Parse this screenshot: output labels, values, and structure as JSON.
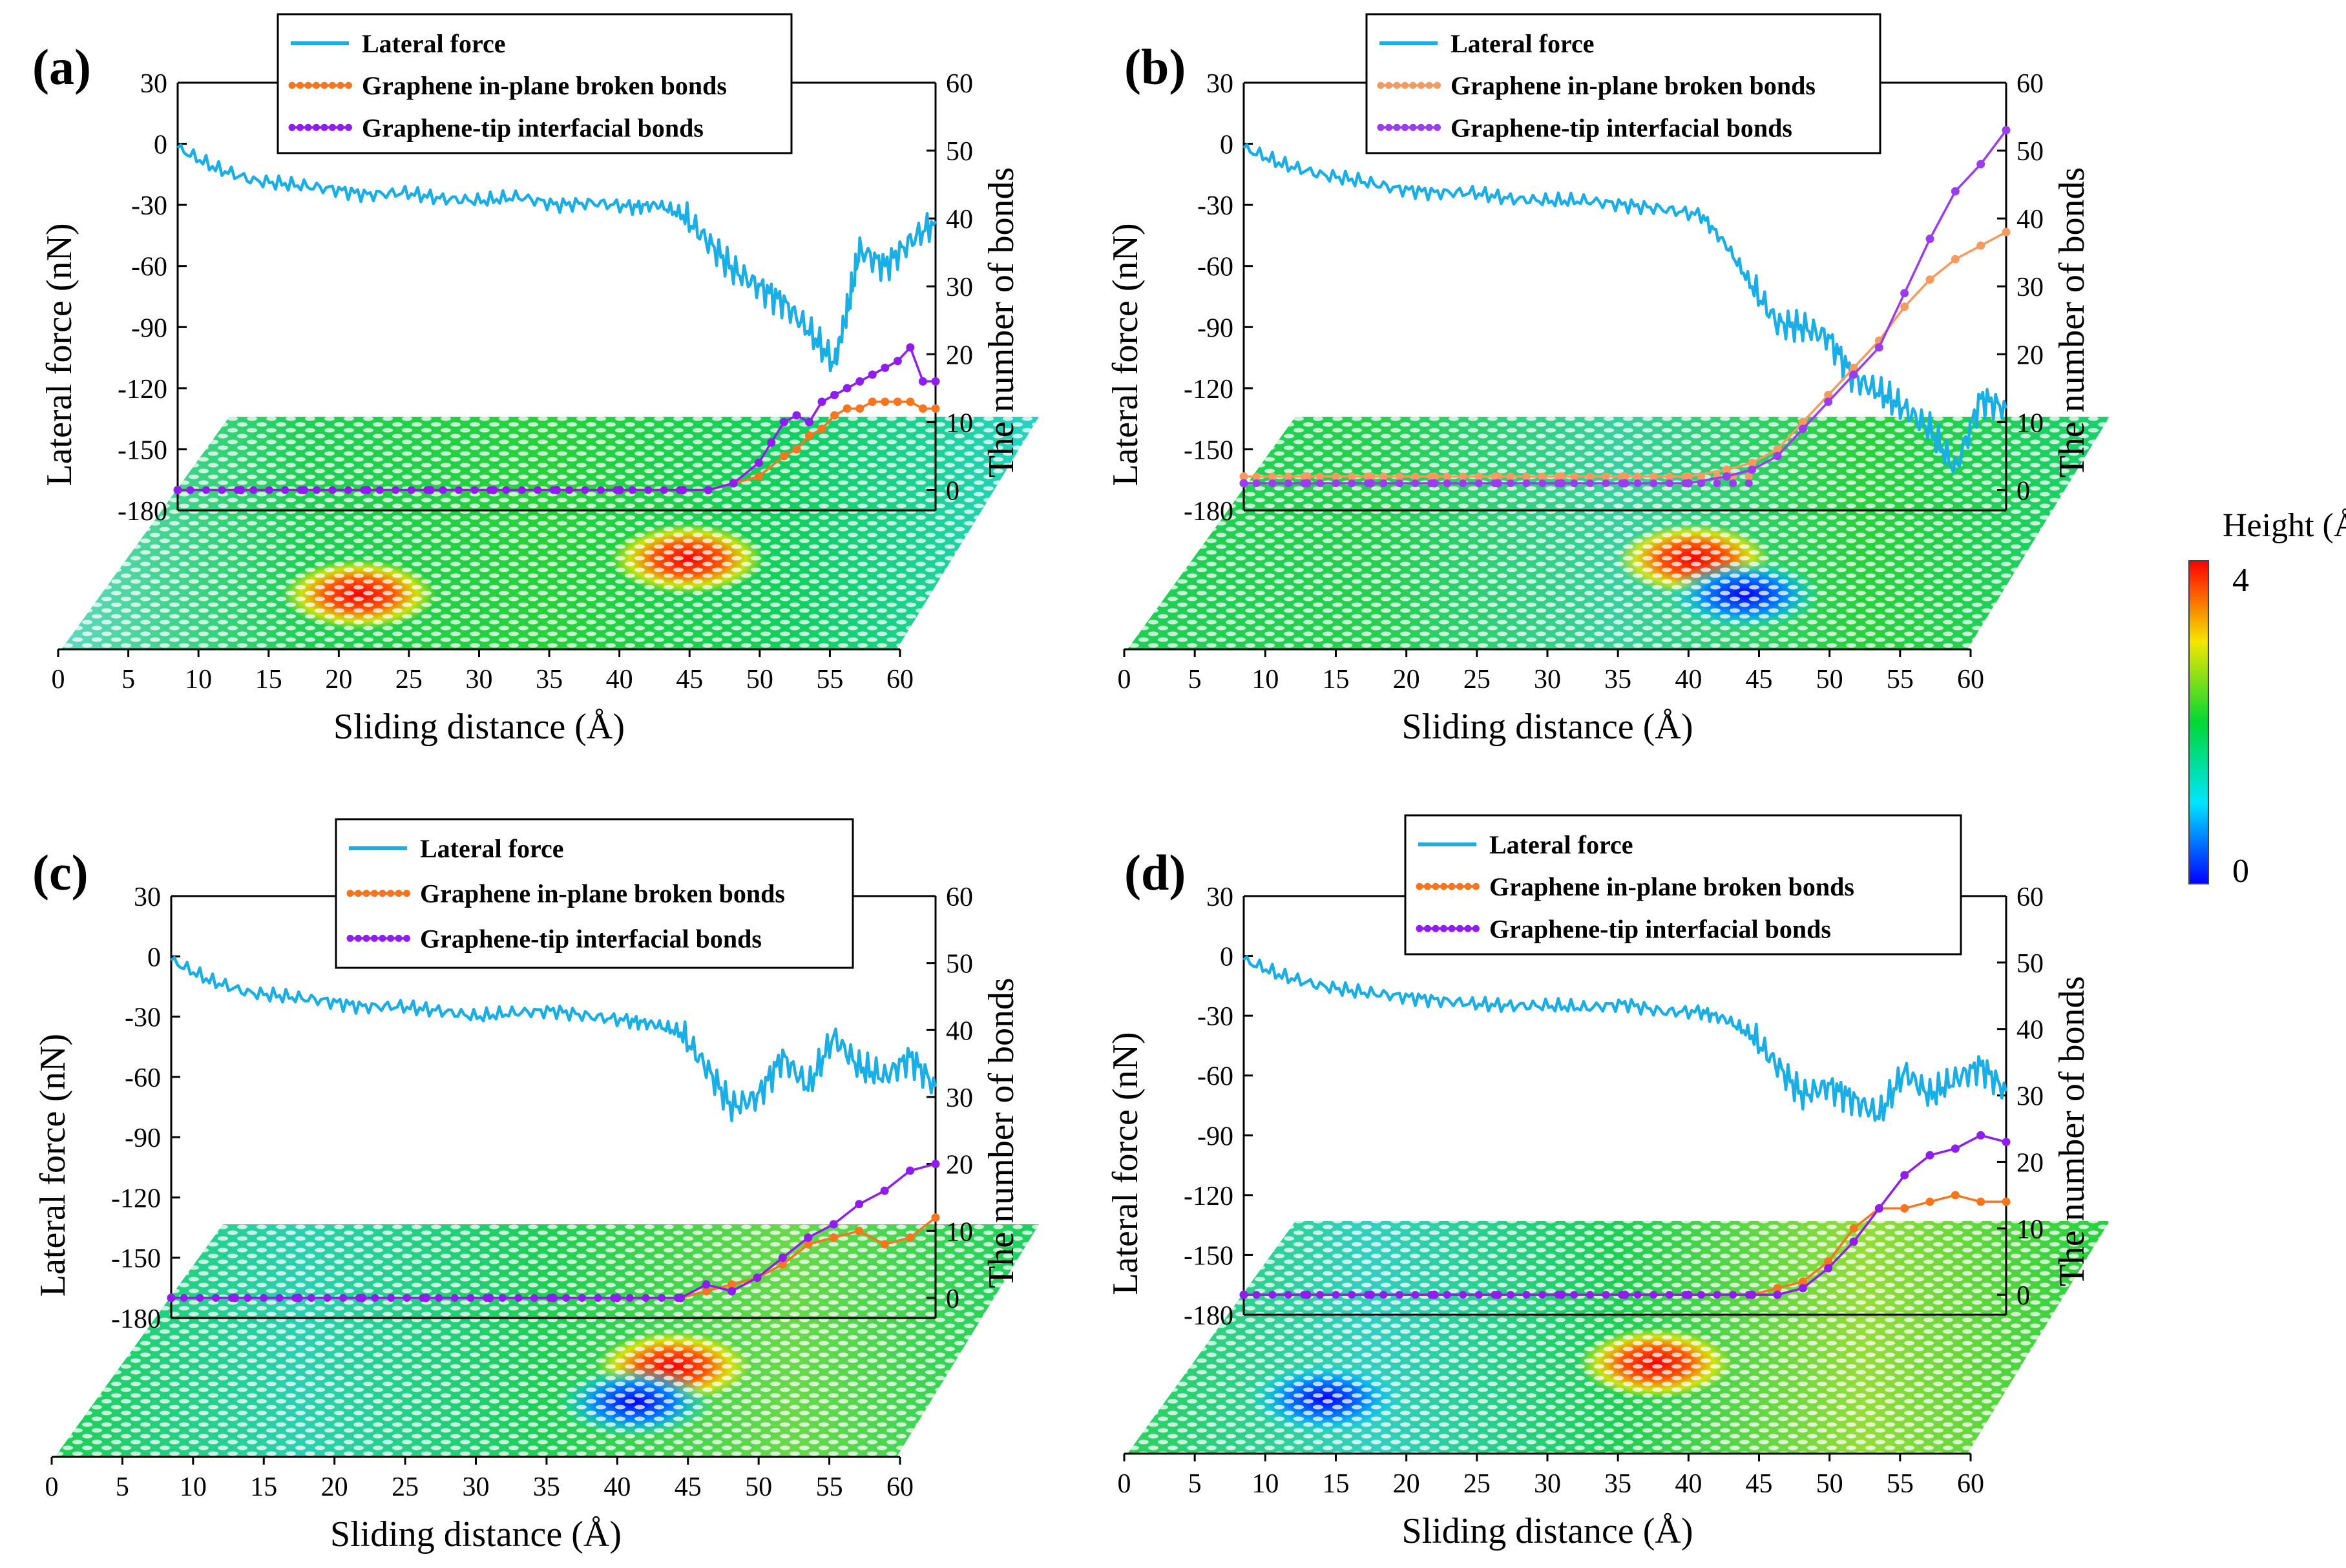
{
  "colors": {
    "lateral_force": "#1aaee6",
    "broken_bonds": "#f7761d",
    "interfacial_bonds": "#8f1df0",
    "broken_bonds_b": "#f79a5e",
    "interfacial_bonds_b": "#9a3cf0"
  },
  "colorbar": {
    "title": "Height (Å)",
    "max_label": "4",
    "min_label": "0",
    "range": [
      0,
      4
    ],
    "colormap": [
      "#0000ff",
      "#00e5ff",
      "#00d832",
      "#f5e600",
      "#ff0000"
    ]
  },
  "chart_data": [
    {
      "type": "line",
      "panel_label": "(a)",
      "xlabel": "Sliding distance (Å)",
      "ylabel_left": "Lateral force (nN)",
      "ylabel_right": "The number of bonds",
      "xlim": [
        0,
        60
      ],
      "ylim_left": [
        -180,
        30
      ],
      "ylim_right": [
        0,
        60
      ],
      "x_ticks": [
        "0",
        "5",
        "10",
        "15",
        "20",
        "25",
        "30",
        "35",
        "40",
        "45",
        "50",
        "55",
        "60"
      ],
      "y_ticks_left": [
        "30",
        "0",
        "-30",
        "-60",
        "-90",
        "-120",
        "-150",
        "-180"
      ],
      "y_ticks_right": [
        "60",
        "50",
        "40",
        "30",
        "20",
        "10",
        "0"
      ],
      "legend": [
        "Lateral force",
        "Graphene in-plane broken bonds",
        "Graphene-tip interfacial bonds"
      ],
      "series": [
        {
          "name": "Lateral force",
          "axis": "left",
          "x": [
            0,
            3,
            6,
            9,
            12,
            15,
            18,
            21,
            24,
            27,
            30,
            33,
            36,
            38,
            40,
            42,
            44,
            46,
            48,
            50,
            52,
            53,
            54,
            56,
            58,
            60
          ],
          "y": [
            -2,
            -12,
            -18,
            -20,
            -22,
            -25,
            -24,
            -27,
            -28,
            -26,
            -30,
            -29,
            -31,
            -30,
            -35,
            -48,
            -62,
            -70,
            -78,
            -92,
            -108,
            -82,
            -52,
            -60,
            -48,
            -38
          ]
        },
        {
          "name": "Graphene in-plane broken bonds",
          "axis": "right",
          "x": [
            0,
            5,
            10,
            15,
            20,
            25,
            30,
            35,
            40,
            42,
            44,
            46,
            48,
            49,
            50,
            51,
            52,
            53,
            54,
            55,
            56,
            57,
            58,
            59,
            60
          ],
          "y": [
            0,
            0,
            0,
            0,
            0,
            0,
            0,
            0,
            0,
            0,
            1,
            2,
            5,
            6,
            8,
            9,
            11,
            12,
            12,
            13,
            13,
            13,
            13,
            12,
            12
          ]
        },
        {
          "name": "Graphene-tip interfacial bonds",
          "axis": "right",
          "x": [
            0,
            5,
            10,
            15,
            20,
            25,
            30,
            35,
            40,
            42,
            44,
            46,
            47,
            48,
            49,
            50,
            51,
            52,
            53,
            54,
            55,
            56,
            57,
            58,
            59,
            60
          ],
          "y": [
            0,
            0,
            0,
            0,
            0,
            0,
            0,
            0,
            0,
            0,
            1,
            4,
            7,
            10,
            11,
            10,
            13,
            14,
            15,
            16,
            17,
            18,
            19,
            21,
            16,
            16
          ]
        }
      ],
      "height_map_hotspots": [
        {
          "x": 46,
          "h": 4
        },
        {
          "x": 20,
          "h": 3
        }
      ]
    },
    {
      "type": "line",
      "panel_label": "(b)",
      "xlabel": "Sliding distance (Å)",
      "ylabel_left": "Lateral force (nN)",
      "ylabel_right": "The number of bonds",
      "xlim": [
        0,
        60
      ],
      "ylim_left": [
        -180,
        30
      ],
      "ylim_right": [
        0,
        60
      ],
      "x_ticks": [
        "0",
        "5",
        "10",
        "15",
        "20",
        "25",
        "30",
        "35",
        "40",
        "45",
        "50",
        "55",
        "60"
      ],
      "y_ticks_left": [
        "30",
        "0",
        "-30",
        "-60",
        "-90",
        "-120",
        "-150",
        "-180"
      ],
      "y_ticks_right": [
        "60",
        "50",
        "40",
        "30",
        "20",
        "10",
        "0"
      ],
      "legend": [
        "Lateral force",
        "Graphene in-plane broken bonds",
        "Graphene-tip interfacial bonds"
      ],
      "series": [
        {
          "name": "Lateral force",
          "axis": "left",
          "x": [
            0,
            3,
            6,
            9,
            12,
            15,
            18,
            21,
            24,
            27,
            30,
            33,
            36,
            38,
            40,
            42,
            44,
            46,
            48,
            50,
            52,
            54,
            56,
            58,
            60
          ],
          "y": [
            -2,
            -10,
            -15,
            -18,
            -22,
            -24,
            -24,
            -27,
            -28,
            -28,
            -30,
            -32,
            -35,
            -50,
            -70,
            -88,
            -90,
            -95,
            -115,
            -122,
            -130,
            -140,
            -160,
            -125,
            -130
          ]
        },
        {
          "name": "Graphene in-plane broken bonds",
          "axis": "right",
          "x": [
            0,
            5,
            10,
            15,
            20,
            25,
            30,
            35,
            38,
            40,
            42,
            44,
            46,
            48,
            50,
            52,
            54,
            56,
            58,
            60
          ],
          "y": [
            2,
            2,
            2,
            2,
            2,
            2,
            2,
            2,
            3,
            4,
            6,
            10,
            14,
            18,
            22,
            27,
            31,
            34,
            36,
            38
          ]
        },
        {
          "name": "Graphene-tip interfacial bonds",
          "axis": "right",
          "x": [
            0,
            5,
            10,
            15,
            20,
            25,
            30,
            35,
            38,
            40,
            42,
            44,
            46,
            48,
            50,
            52,
            54,
            56,
            58,
            60
          ],
          "y": [
            1,
            1,
            1,
            1,
            1,
            1,
            1,
            1,
            2,
            3,
            5,
            9,
            13,
            17,
            21,
            29,
            37,
            44,
            48,
            53
          ]
        }
      ],
      "height_map_hotspots": [
        {
          "x": 41,
          "h": 4
        },
        {
          "x": 45,
          "h": 0
        }
      ]
    },
    {
      "type": "line",
      "panel_label": "(c)",
      "xlabel": "Sliding distance (Å)",
      "ylabel_left": "Lateral force (nN)",
      "ylabel_right": "The number of bonds",
      "xlim": [
        0,
        60
      ],
      "ylim_left": [
        -180,
        30
      ],
      "ylim_right": [
        0,
        60
      ],
      "x_ticks": [
        "0",
        "5",
        "10",
        "15",
        "20",
        "25",
        "30",
        "35",
        "40",
        "45",
        "50",
        "55",
        "60"
      ],
      "y_ticks_left": [
        "30",
        "0",
        "-30",
        "-60",
        "-90",
        "-120",
        "-150",
        "-180"
      ],
      "y_ticks_right": [
        "60",
        "50",
        "40",
        "30",
        "20",
        "10",
        "0"
      ],
      "legend": [
        "Lateral force",
        "Graphene in-plane broken bonds",
        "Graphene-tip interfacial bonds"
      ],
      "series": [
        {
          "name": "Lateral force",
          "axis": "left",
          "x": [
            0,
            3,
            6,
            9,
            12,
            15,
            18,
            21,
            24,
            27,
            30,
            33,
            36,
            38,
            40,
            42,
            44,
            46,
            48,
            50,
            52,
            54,
            56,
            58,
            60
          ],
          "y": [
            -2,
            -12,
            -18,
            -20,
            -22,
            -25,
            -25,
            -27,
            -30,
            -28,
            -27,
            -30,
            -32,
            -34,
            -38,
            -55,
            -75,
            -70,
            -50,
            -65,
            -40,
            -55,
            -60,
            -50,
            -65
          ]
        },
        {
          "name": "Graphene in-plane broken bonds",
          "axis": "right",
          "x": [
            0,
            5,
            10,
            15,
            20,
            25,
            30,
            35,
            40,
            42,
            44,
            46,
            48,
            50,
            52,
            54,
            56,
            58,
            60
          ],
          "y": [
            0,
            0,
            0,
            0,
            0,
            0,
            0,
            0,
            0,
            1,
            2,
            3,
            5,
            8,
            9,
            10,
            8,
            9,
            12
          ]
        },
        {
          "name": "Graphene-tip interfacial bonds",
          "axis": "right",
          "x": [
            0,
            5,
            10,
            15,
            20,
            25,
            30,
            35,
            40,
            42,
            44,
            46,
            48,
            50,
            52,
            54,
            56,
            58,
            60
          ],
          "y": [
            0,
            0,
            0,
            0,
            0,
            0,
            0,
            0,
            0,
            2,
            1,
            3,
            6,
            9,
            11,
            14,
            16,
            19,
            20
          ]
        }
      ],
      "height_map_hotspots": [
        {
          "x": 45,
          "h": 4
        },
        {
          "x": 42,
          "h": 0
        }
      ]
    },
    {
      "type": "line",
      "panel_label": "(d)",
      "xlabel": "Sliding distance (Å)",
      "ylabel_left": "Lateral force (nN)",
      "ylabel_right": "The number of bonds",
      "xlim": [
        0,
        60
      ],
      "ylim_left": [
        -180,
        30
      ],
      "ylim_right": [
        0,
        60
      ],
      "x_ticks": [
        "0",
        "5",
        "10",
        "15",
        "20",
        "25",
        "30",
        "35",
        "40",
        "45",
        "50",
        "55",
        "60"
      ],
      "y_ticks_left": [
        "30",
        "0",
        "-30",
        "-60",
        "-90",
        "-120",
        "-150",
        "-180"
      ],
      "y_ticks_right": [
        "60",
        "50",
        "40",
        "30",
        "20",
        "10",
        "0"
      ],
      "legend": [
        "Lateral force",
        "Graphene in-plane broken bonds",
        "Graphene-tip interfacial bonds"
      ],
      "series": [
        {
          "name": "Lateral force",
          "axis": "left",
          "x": [
            0,
            3,
            6,
            9,
            12,
            15,
            18,
            21,
            24,
            27,
            30,
            33,
            36,
            38,
            40,
            42,
            44,
            46,
            48,
            50,
            52,
            54,
            56,
            58,
            60
          ],
          "y": [
            -2,
            -10,
            -15,
            -18,
            -20,
            -22,
            -24,
            -25,
            -25,
            -26,
            -24,
            -28,
            -28,
            -32,
            -40,
            -55,
            -70,
            -65,
            -72,
            -80,
            -58,
            -70,
            -62,
            -55,
            -68
          ]
        },
        {
          "name": "Graphene in-plane broken bonds",
          "axis": "right",
          "x": [
            0,
            5,
            10,
            15,
            20,
            25,
            30,
            35,
            40,
            42,
            44,
            46,
            48,
            50,
            52,
            54,
            56,
            58,
            60
          ],
          "y": [
            0,
            0,
            0,
            0,
            0,
            0,
            0,
            0,
            0,
            1,
            2,
            5,
            10,
            13,
            13,
            14,
            15,
            14,
            14
          ]
        },
        {
          "name": "Graphene-tip interfacial bonds",
          "axis": "right",
          "x": [
            0,
            5,
            10,
            15,
            20,
            25,
            30,
            35,
            40,
            42,
            44,
            46,
            48,
            50,
            52,
            54,
            56,
            58,
            60
          ],
          "y": [
            0,
            0,
            0,
            0,
            0,
            0,
            0,
            0,
            0,
            0,
            1,
            4,
            8,
            13,
            18,
            21,
            22,
            24,
            23
          ]
        }
      ],
      "height_map_hotspots": [
        {
          "x": 38,
          "h": 4
        },
        {
          "x": 12,
          "h": 0
        }
      ]
    }
  ]
}
